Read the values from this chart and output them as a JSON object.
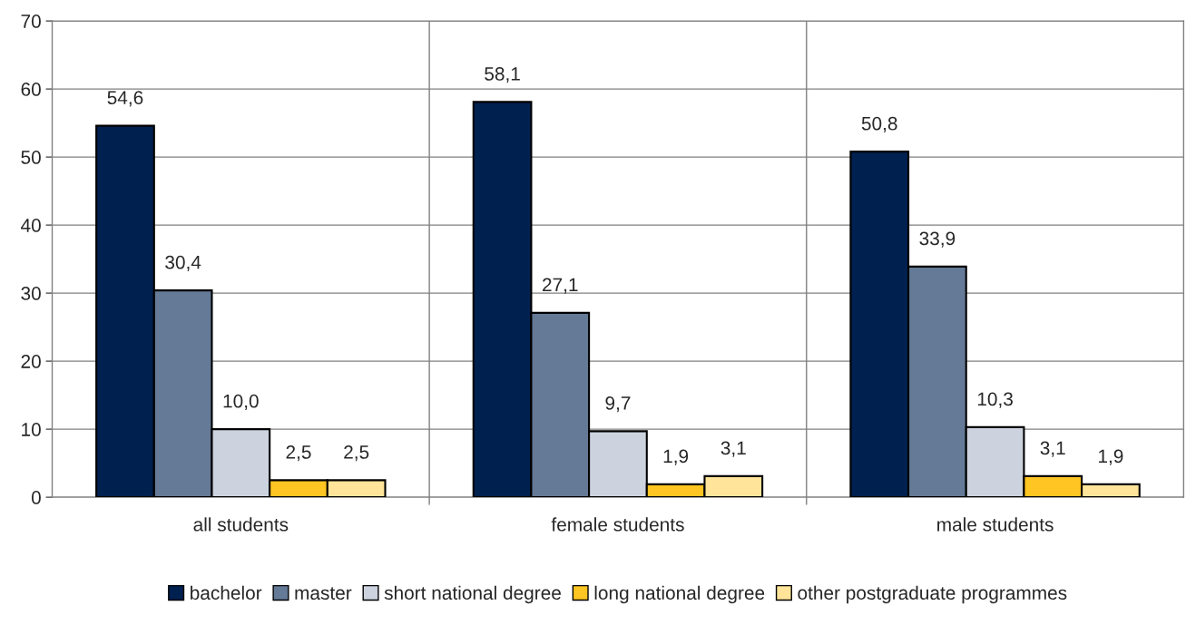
{
  "chart_data": {
    "type": "bar",
    "categories": [
      "all students",
      "female students",
      "male students"
    ],
    "series": [
      {
        "name": "bachelor",
        "color": "#002050",
        "values": [
          54.6,
          58.1,
          50.8
        ],
        "value_labels": [
          "54,6",
          "58,1",
          "50,8"
        ]
      },
      {
        "name": "master",
        "color": "#647a96",
        "values": [
          30.4,
          27.1,
          33.9
        ],
        "value_labels": [
          "30,4",
          "27,1",
          "33,9"
        ]
      },
      {
        "name": "short national degree",
        "color": "#ccd3de",
        "values": [
          10.0,
          9.7,
          10.3
        ],
        "value_labels": [
          "10,0",
          "9,7",
          "10,3"
        ]
      },
      {
        "name": "long national degree",
        "color": "#ffc522",
        "values": [
          2.5,
          1.9,
          3.1
        ],
        "value_labels": [
          "2,5",
          "1,9",
          "3,1"
        ]
      },
      {
        "name": "other postgraduate programmes",
        "color": "#ffe499",
        "values": [
          2.5,
          3.1,
          1.9
        ],
        "value_labels": [
          "2,5",
          "3,1",
          "1,9"
        ]
      }
    ],
    "ylim": [
      0,
      70
    ],
    "yticks": [
      0,
      10,
      20,
      30,
      40,
      50,
      60,
      70
    ],
    "grid": true,
    "legend": "bottom"
  }
}
